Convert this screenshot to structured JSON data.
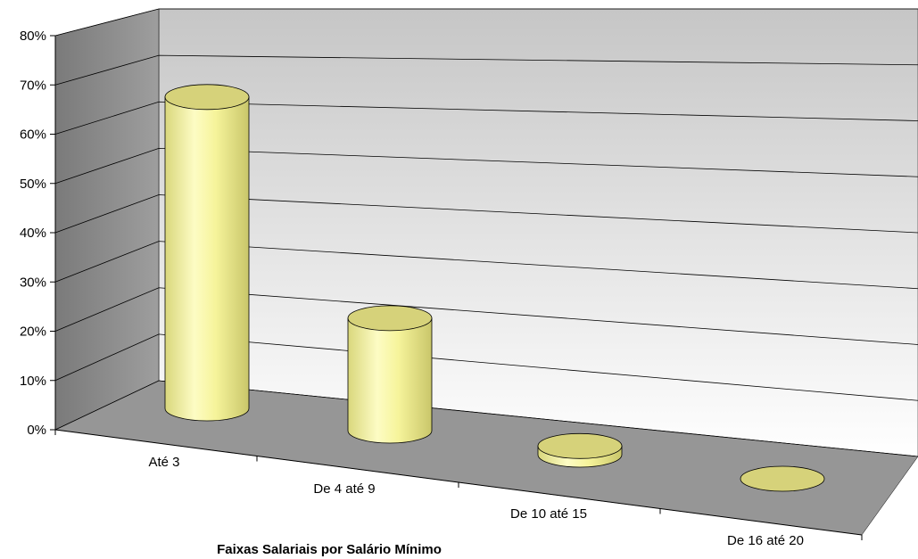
{
  "chart_data": {
    "type": "bar",
    "style": "3d-cylinder",
    "categories": [
      "Até  3",
      "De  4 até  9",
      "De 10 até 15",
      "De 16 até 20"
    ],
    "values": [
      0.72,
      0.26,
      0.02,
      0.0
    ],
    "ylim": [
      0,
      0.8
    ],
    "yticks": [
      "0%",
      "10%",
      "20%",
      "30%",
      "40%",
      "50%",
      "60%",
      "70%",
      "80%"
    ],
    "xlabel": "Faixas Salariais por Salário Mínimo",
    "ylabel": "",
    "grid": true,
    "legend": "none",
    "colors": {
      "bar": "#f6f49b",
      "bar_top": "#d6d27a",
      "floor": "#969696",
      "back_wall_top": "#c6c6c6",
      "back_wall_bottom": "#ffffff",
      "side_wall": "#808080"
    }
  }
}
